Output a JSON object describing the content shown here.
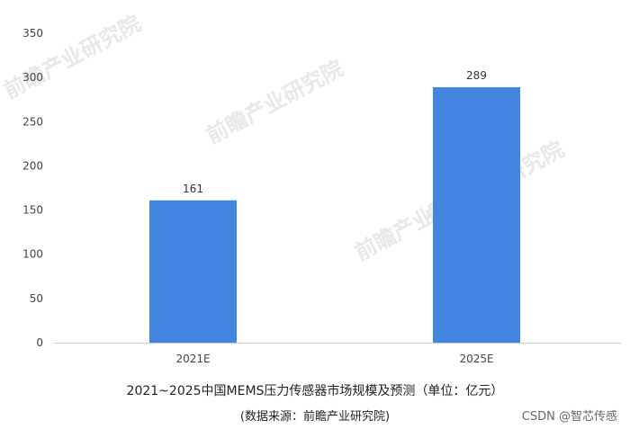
{
  "chart_data": {
    "type": "bar",
    "title": "2021~2025中国MEMS压力传感器市场规模及预测（单位：亿元）",
    "subtitle": "(数据来源：前瞻产业研究院)",
    "categories": [
      "2021E",
      "2025E"
    ],
    "values": [
      161,
      289
    ],
    "ylim": [
      0,
      350
    ],
    "yticks": [
      0,
      50,
      100,
      150,
      200,
      250,
      300,
      350
    ],
    "grid": false,
    "colors": {
      "bar": "#4285e0",
      "axis": "#d0d0d0"
    }
  },
  "watermark": "前瞻产业研究院",
  "credit": "CSDN @智芯传感"
}
